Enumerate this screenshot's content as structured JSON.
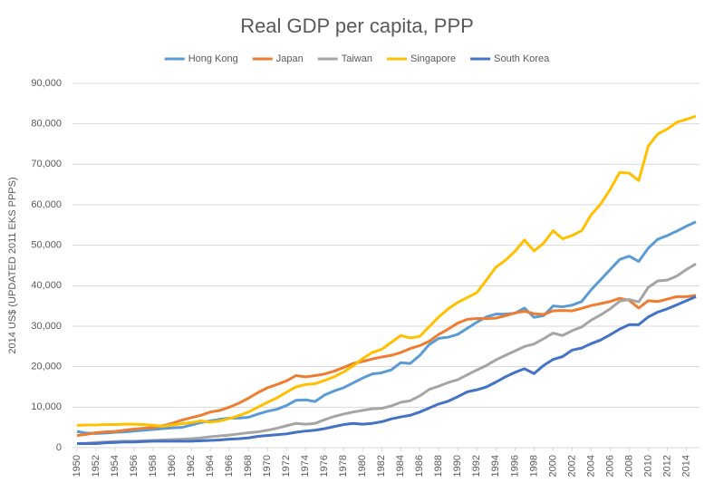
{
  "chart_data": {
    "type": "line",
    "title": "Real GDP per capita, PPP",
    "y_label": "2014 US$ (UPDATED 2011 EKS PPPS)",
    "x": [
      1950,
      1951,
      1952,
      1953,
      1954,
      1955,
      1956,
      1957,
      1958,
      1959,
      1960,
      1961,
      1962,
      1963,
      1964,
      1965,
      1966,
      1967,
      1968,
      1969,
      1970,
      1971,
      1972,
      1973,
      1974,
      1975,
      1976,
      1977,
      1978,
      1979,
      1980,
      1981,
      1982,
      1983,
      1984,
      1985,
      1986,
      1987,
      1988,
      1989,
      1990,
      1991,
      1992,
      1993,
      1994,
      1995,
      1996,
      1997,
      1998,
      1999,
      2000,
      2001,
      2002,
      2003,
      2004,
      2005,
      2006,
      2007,
      2008,
      2009,
      2010,
      2011,
      2012,
      2013,
      2014,
      2015
    ],
    "xlim": [
      1950,
      2015
    ],
    "xticks": [
      1950,
      1952,
      1954,
      1956,
      1958,
      1960,
      1962,
      1964,
      1966,
      1968,
      1970,
      1972,
      1974,
      1976,
      1978,
      1980,
      1982,
      1984,
      1986,
      1988,
      1990,
      1992,
      1994,
      1996,
      1998,
      2000,
      2002,
      2004,
      2006,
      2008,
      2010,
      2012,
      2014
    ],
    "ylim": [
      0,
      90000
    ],
    "yticks": [
      0,
      {
        "value": 10000,
        "label": "10,000"
      },
      {
        "value": 20000,
        "label": "20,000"
      },
      {
        "value": 30000,
        "label": "30,000"
      },
      {
        "value": 40000,
        "label": "40,000"
      },
      {
        "value": 50000,
        "label": "50,000"
      },
      {
        "value": 60000,
        "label": "60,000"
      },
      {
        "value": 70000,
        "label": "70,000"
      },
      {
        "value": 80000,
        "label": "80,000"
      },
      {
        "value": 90000,
        "label": "90,000"
      }
    ],
    "grid": true,
    "legend": "top",
    "series": [
      {
        "name": "Hong Kong",
        "color": "#5b9bd5",
        "values": [
          4000,
          3600,
          3500,
          3600,
          3800,
          3900,
          4100,
          4300,
          4500,
          4700,
          4900,
          5000,
          5600,
          6200,
          6600,
          7000,
          7300,
          7300,
          7500,
          8300,
          9000,
          9500,
          10400,
          11700,
          11800,
          11400,
          13000,
          14000,
          14800,
          16000,
          17200,
          18200,
          18500,
          19200,
          21000,
          20800,
          22800,
          25500,
          27000,
          27300,
          28000,
          29500,
          31000,
          32300,
          33000,
          33000,
          33200,
          34500,
          32200,
          32600,
          35000,
          34800,
          35200,
          36100,
          39000,
          41500,
          44000,
          46500,
          47300,
          46000,
          49300,
          51500,
          52400,
          53500,
          54700,
          55800
        ]
      },
      {
        "name": "Japan",
        "color": "#ed7d31",
        "values": [
          3000,
          3300,
          3700,
          3900,
          4000,
          4300,
          4600,
          4800,
          5000,
          5400,
          6000,
          6800,
          7400,
          8000,
          8800,
          9200,
          10000,
          11000,
          12200,
          13600,
          14800,
          15600,
          16500,
          17800,
          17500,
          17800,
          18200,
          18900,
          19800,
          20800,
          21300,
          21900,
          22400,
          22800,
          23500,
          24500,
          25200,
          26300,
          28000,
          29300,
          30800,
          31700,
          31900,
          31900,
          32000,
          32600,
          33300,
          33700,
          33100,
          32900,
          33800,
          33900,
          33800,
          34400,
          35100,
          35600,
          36100,
          36900,
          36400,
          34500,
          36300,
          36100,
          36700,
          37300,
          37300,
          37600
        ]
      },
      {
        "name": "Taiwan",
        "color": "#a5a5a5",
        "values": [
          1000,
          1100,
          1300,
          1400,
          1500,
          1600,
          1600,
          1700,
          1800,
          1900,
          2000,
          2100,
          2200,
          2400,
          2700,
          2900,
          3100,
          3400,
          3700,
          3900,
          4300,
          4800,
          5400,
          6000,
          5800,
          6000,
          6900,
          7700,
          8300,
          8800,
          9200,
          9600,
          9700,
          10300,
          11200,
          11600,
          12800,
          14400,
          15200,
          16100,
          16800,
          18000,
          19200,
          20300,
          21700,
          22800,
          23900,
          25000,
          25600,
          26900,
          28300,
          27700,
          28900,
          29800,
          31500,
          32800,
          34300,
          36200,
          36600,
          36000,
          39600,
          41200,
          41400,
          42400,
          44000,
          45400
        ]
      },
      {
        "name": "Singapore",
        "color": "#ffc000",
        "values": [
          5500,
          5600,
          5600,
          5700,
          5700,
          5800,
          5800,
          5700,
          5500,
          5300,
          5600,
          5900,
          6200,
          6600,
          6300,
          6600,
          7200,
          7900,
          8800,
          10000,
          11200,
          12300,
          13700,
          15000,
          15600,
          15800,
          16600,
          17500,
          18700,
          20200,
          22000,
          23500,
          24300,
          26000,
          27700,
          27100,
          27500,
          29900,
          32300,
          34300,
          35900,
          37100,
          38300,
          41400,
          44600,
          46300,
          48500,
          51300,
          48600,
          50500,
          53600,
          51600,
          52400,
          53600,
          57500,
          60200,
          63800,
          68000,
          67800,
          66000,
          74500,
          77500,
          78700,
          80400,
          81100,
          81900
        ]
      },
      {
        "name": "South Korea",
        "color": "#4472c4",
        "values": [
          1000,
          1000,
          1000,
          1200,
          1300,
          1400,
          1400,
          1500,
          1600,
          1600,
          1600,
          1600,
          1600,
          1700,
          1800,
          1900,
          2100,
          2200,
          2400,
          2800,
          3000,
          3200,
          3400,
          3800,
          4100,
          4300,
          4700,
          5200,
          5700,
          6000,
          5800,
          6000,
          6400,
          7100,
          7600,
          8000,
          8800,
          9800,
          10800,
          11500,
          12600,
          13800,
          14300,
          15000,
          16200,
          17500,
          18600,
          19500,
          18300,
          20300,
          21800,
          22500,
          24100,
          24600,
          25700,
          26600,
          27900,
          29300,
          30400,
          30400,
          32300,
          33500,
          34300,
          35300,
          36300,
          37300
        ]
      }
    ]
  }
}
